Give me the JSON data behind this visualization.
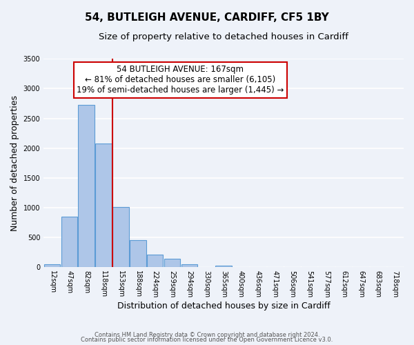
{
  "title": "54, BUTLEIGH AVENUE, CARDIFF, CF5 1BY",
  "subtitle": "Size of property relative to detached houses in Cardiff",
  "xlabel": "Distribution of detached houses by size in Cardiff",
  "ylabel": "Number of detached properties",
  "footnote1": "Contains HM Land Registry data © Crown copyright and database right 2024.",
  "footnote2": "Contains public sector information licensed under the Open Government Licence v3.0.",
  "bin_labels": [
    "12sqm",
    "47sqm",
    "82sqm",
    "118sqm",
    "153sqm",
    "188sqm",
    "224sqm",
    "259sqm",
    "294sqm",
    "330sqm",
    "365sqm",
    "400sqm",
    "436sqm",
    "471sqm",
    "506sqm",
    "541sqm",
    "577sqm",
    "612sqm",
    "647sqm",
    "683sqm",
    "718sqm"
  ],
  "bar_values": [
    50,
    850,
    2725,
    2075,
    1010,
    450,
    205,
    145,
    50,
    0,
    25,
    0,
    0,
    0,
    0,
    0,
    0,
    0,
    0,
    0,
    0
  ],
  "bar_color": "#aec6e8",
  "bar_edgecolor": "#5b9bd5",
  "vline_x_index": 4,
  "vline_color": "#cc0000",
  "ylim": [
    0,
    3500
  ],
  "yticks": [
    0,
    500,
    1000,
    1500,
    2000,
    2500,
    3000,
    3500
  ],
  "annotation_title": "54 BUTLEIGH AVENUE: 167sqm",
  "annotation_line1": "← 81% of detached houses are smaller (6,105)",
  "annotation_line2": "19% of semi-detached houses are larger (1,445) →",
  "annotation_box_color": "#ffffff",
  "annotation_box_edgecolor": "#cc0000",
  "background_color": "#eef2f9",
  "grid_color": "#ffffff",
  "title_fontsize": 11,
  "subtitle_fontsize": 9.5,
  "axis_label_fontsize": 9,
  "tick_fontsize": 7,
  "annotation_fontsize": 8.5
}
